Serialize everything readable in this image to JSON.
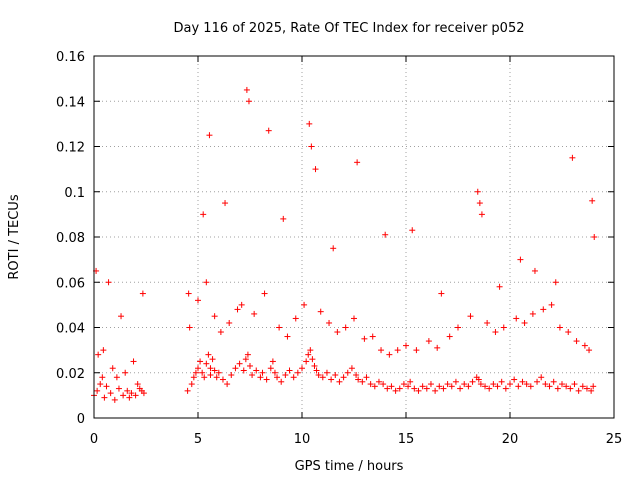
{
  "chart_data": {
    "type": "scatter",
    "title": "Day 116 of 2025, Rate Of TEC Index for receiver p052",
    "xlabel": "GPS time / hours",
    "ylabel": "ROTI / TECUs",
    "xlim": [
      0,
      25
    ],
    "ylim": [
      0,
      0.16
    ],
    "xticks": [
      0,
      5,
      10,
      15,
      20,
      25
    ],
    "xtick_labels": [
      "0",
      "5",
      "10",
      "15",
      "20",
      "25"
    ],
    "yticks": [
      0,
      0.02,
      0.04,
      0.06,
      0.08,
      0.1,
      0.12,
      0.14,
      0.16
    ],
    "ytick_labels": [
      "0",
      "0.02",
      "0.04",
      "0.06",
      "0.08",
      "0.1",
      "0.12",
      "0.14",
      "0.16"
    ],
    "grid": true,
    "marker": "plus",
    "marker_color": "#ff0000",
    "series": [
      {
        "name": "ROTI",
        "x": [
          0.0,
          0.15,
          0.3,
          0.4,
          0.5,
          0.6,
          0.8,
          1.0,
          1.2,
          1.4,
          1.6,
          1.7,
          1.8,
          2.0,
          2.2,
          2.3,
          2.4,
          4.5,
          4.7,
          4.8,
          4.9,
          5.0,
          5.1,
          5.2,
          5.3,
          5.4,
          5.5,
          5.6,
          5.6,
          5.7,
          5.8,
          5.9,
          6.0,
          6.2,
          6.4,
          6.6,
          6.8,
          7.0,
          7.2,
          7.3,
          7.4,
          7.5,
          7.6,
          7.8,
          8.0,
          8.1,
          8.3,
          8.5,
          8.6,
          8.7,
          8.8,
          9.0,
          9.2,
          9.4,
          9.6,
          9.8,
          10.0,
          10.2,
          10.3,
          10.4,
          10.5,
          10.6,
          10.7,
          10.8,
          11.0,
          11.2,
          11.4,
          11.6,
          11.8,
          12.0,
          12.2,
          12.4,
          12.6,
          12.7,
          12.9,
          13.1,
          13.3,
          13.5,
          13.7,
          13.9,
          14.1,
          14.3,
          14.5,
          14.7,
          14.9,
          15.1,
          15.2,
          15.4,
          15.6,
          15.8,
          16.0,
          16.2,
          16.4,
          16.6,
          16.8,
          17.0,
          17.2,
          17.4,
          17.6,
          17.8,
          18.0,
          18.2,
          18.4,
          18.5,
          18.6,
          18.8,
          19.0,
          19.2,
          19.4,
          19.6,
          19.8,
          20.0,
          20.2,
          20.4,
          20.6,
          20.8,
          21.0,
          21.3,
          21.5,
          21.7,
          21.9,
          22.1,
          22.3,
          22.5,
          22.7,
          22.9,
          23.1,
          23.3,
          23.5,
          23.7,
          23.9,
          24.0,
          0.2,
          0.45,
          0.9,
          1.1,
          1.5,
          1.9,
          2.1,
          4.6,
          5.0,
          5.4,
          5.8,
          6.1,
          6.5,
          6.9,
          7.1,
          7.7,
          8.2,
          8.9,
          9.3,
          9.7,
          10.1,
          10.9,
          11.3,
          11.7,
          12.1,
          12.5,
          13.0,
          13.4,
          13.8,
          14.2,
          14.6,
          15.0,
          15.5,
          16.1,
          16.5,
          17.1,
          17.5,
          18.1,
          18.9,
          19.3,
          19.7,
          20.3,
          20.7,
          21.1,
          21.6,
          22.0,
          22.4,
          22.8,
          23.2,
          23.6,
          23.8,
          0.1,
          0.7,
          1.3,
          2.35,
          4.55,
          5.25,
          5.55,
          6.3,
          7.35,
          7.45,
          8.4,
          9.1,
          10.35,
          10.45,
          10.65,
          11.5,
          12.65,
          14.0,
          15.3,
          16.7,
          18.45,
          18.55,
          18.65,
          19.5,
          20.5,
          21.2,
          22.2,
          23.0,
          23.95,
          24.05
        ],
        "y": [
          0.01,
          0.012,
          0.015,
          0.018,
          0.009,
          0.014,
          0.011,
          0.008,
          0.013,
          0.01,
          0.012,
          0.009,
          0.011,
          0.01,
          0.013,
          0.012,
          0.011,
          0.012,
          0.015,
          0.018,
          0.02,
          0.022,
          0.025,
          0.02,
          0.018,
          0.024,
          0.028,
          0.022,
          0.019,
          0.026,
          0.021,
          0.018,
          0.02,
          0.017,
          0.015,
          0.019,
          0.022,
          0.024,
          0.021,
          0.026,
          0.028,
          0.023,
          0.019,
          0.021,
          0.018,
          0.02,
          0.017,
          0.022,
          0.025,
          0.02,
          0.018,
          0.016,
          0.019,
          0.021,
          0.018,
          0.02,
          0.022,
          0.025,
          0.028,
          0.03,
          0.026,
          0.023,
          0.021,
          0.019,
          0.018,
          0.02,
          0.017,
          0.019,
          0.016,
          0.018,
          0.02,
          0.022,
          0.019,
          0.017,
          0.016,
          0.018,
          0.015,
          0.014,
          0.016,
          0.015,
          0.013,
          0.014,
          0.012,
          0.013,
          0.015,
          0.014,
          0.016,
          0.013,
          0.012,
          0.014,
          0.013,
          0.015,
          0.012,
          0.014,
          0.013,
          0.015,
          0.014,
          0.016,
          0.013,
          0.015,
          0.014,
          0.016,
          0.018,
          0.017,
          0.015,
          0.014,
          0.013,
          0.015,
          0.014,
          0.016,
          0.013,
          0.015,
          0.017,
          0.014,
          0.016,
          0.015,
          0.014,
          0.016,
          0.018,
          0.015,
          0.014,
          0.016,
          0.013,
          0.015,
          0.014,
          0.013,
          0.015,
          0.012,
          0.014,
          0.013,
          0.012,
          0.014,
          0.028,
          0.03,
          0.022,
          0.018,
          0.02,
          0.025,
          0.015,
          0.04,
          0.052,
          0.06,
          0.045,
          0.038,
          0.042,
          0.048,
          0.05,
          0.046,
          0.055,
          0.04,
          0.036,
          0.044,
          0.05,
          0.047,
          0.042,
          0.038,
          0.04,
          0.044,
          0.035,
          0.036,
          0.03,
          0.028,
          0.03,
          0.032,
          0.03,
          0.034,
          0.031,
          0.036,
          0.04,
          0.045,
          0.042,
          0.038,
          0.04,
          0.044,
          0.042,
          0.046,
          0.048,
          0.05,
          0.04,
          0.038,
          0.034,
          0.032,
          0.03,
          0.065,
          0.06,
          0.045,
          0.055,
          0.055,
          0.09,
          0.125,
          0.095,
          0.145,
          0.14,
          0.127,
          0.088,
          0.13,
          0.12,
          0.11,
          0.075,
          0.113,
          0.081,
          0.083,
          0.055,
          0.1,
          0.095,
          0.09,
          0.058,
          0.07,
          0.065,
          0.06,
          0.115,
          0.096,
          0.08
        ]
      }
    ]
  }
}
